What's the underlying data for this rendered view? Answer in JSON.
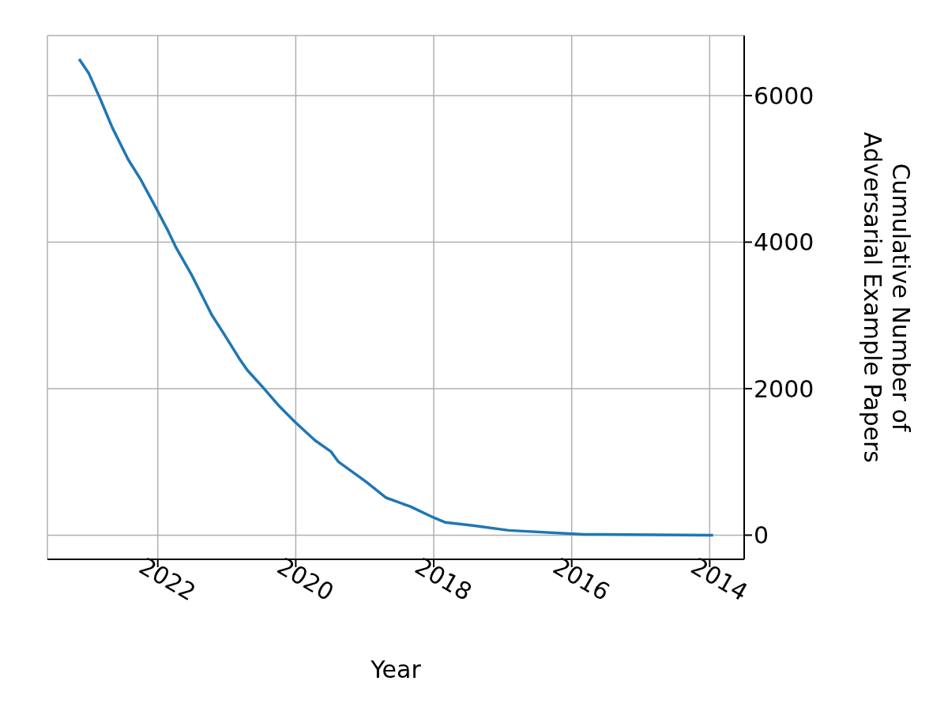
{
  "chart_data": {
    "type": "line",
    "xlabel": "Year",
    "ylabel": "Cumulative Number of\nAdversarial Example Papers",
    "x": [
      2013.95,
      2015.82,
      2016.91,
      2017.43,
      2017.83,
      2018.0,
      2018.34,
      2018.69,
      2018.98,
      2019.38,
      2019.49,
      2019.72,
      2020.01,
      2020.24,
      2020.47,
      2020.7,
      2020.82,
      2021.05,
      2021.22,
      2021.51,
      2021.74,
      2021.85,
      2022.02,
      2022.25,
      2022.43,
      2022.66,
      2022.83,
      2023.0,
      2023.14
    ],
    "series": [
      {
        "color": "#1f77b4",
        "values": [
          0,
          11,
          65,
          130,
          174,
          239,
          391,
          511,
          728,
          1000,
          1141,
          1293,
          1543,
          1761,
          2011,
          2250,
          2413,
          2761,
          3011,
          3554,
          3935,
          4152,
          4457,
          4859,
          5130,
          5565,
          5946,
          6304,
          6500
        ]
      }
    ],
    "xlim": [
      2023.6,
      2013.5
    ],
    "xticks": [
      2014,
      2016,
      2018,
      2020,
      2022
    ],
    "ylim": [
      -330,
      6820
    ],
    "yticks": [
      0,
      2000,
      4000,
      6000
    ],
    "grid": true,
    "legend": false,
    "marker": "none",
    "line_style": "solid"
  }
}
